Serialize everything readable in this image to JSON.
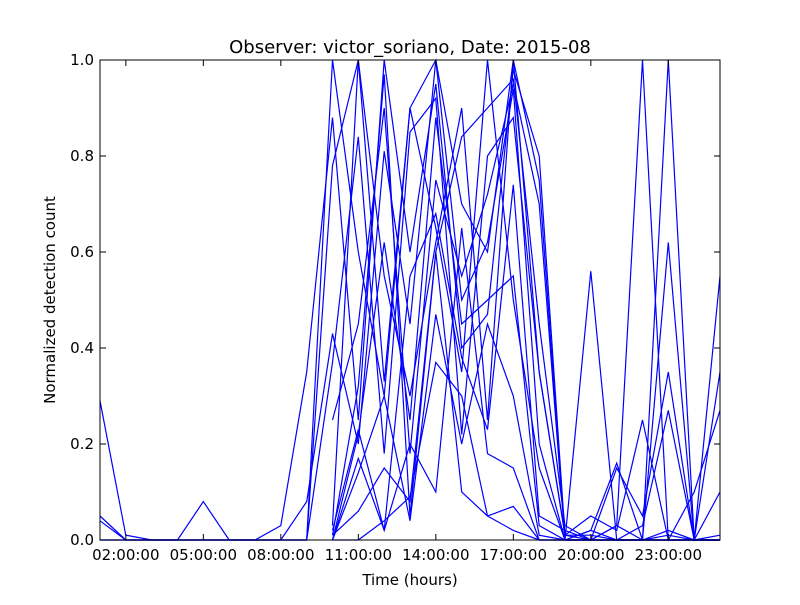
{
  "chart_data": {
    "type": "line",
    "title": "Observer: victor_soriano, Date: 2015-08",
    "xlabel": "Time (hours)",
    "ylabel": "Normalized detection count",
    "xlim": [
      1.0,
      25.0
    ],
    "ylim": [
      0.0,
      1.0
    ],
    "x_ticks": [
      {
        "value": 2,
        "label": "02:00:00"
      },
      {
        "value": 5,
        "label": "05:00:00"
      },
      {
        "value": 8,
        "label": "08:00:00"
      },
      {
        "value": 11,
        "label": "11:00:00"
      },
      {
        "value": 14,
        "label": "14:00:00"
      },
      {
        "value": 17,
        "label": "17:00:00"
      },
      {
        "value": 20,
        "label": "20:00:00"
      },
      {
        "value": 23,
        "label": "23:00:00"
      }
    ],
    "y_ticks": [
      {
        "value": 0.0,
        "label": "0.0"
      },
      {
        "value": 0.2,
        "label": "0.2"
      },
      {
        "value": 0.4,
        "label": "0.4"
      },
      {
        "value": 0.6,
        "label": "0.6"
      },
      {
        "value": 0.8,
        "label": "0.8"
      },
      {
        "value": 1.0,
        "label": "1.0"
      }
    ],
    "grid": false,
    "line_color": "#0000ff",
    "series": [
      {
        "x": [
          1,
          2,
          3,
          4,
          5,
          6,
          7,
          8,
          9,
          10,
          11,
          12,
          13,
          14,
          15,
          16,
          17,
          18,
          19,
          20,
          21,
          22,
          23,
          24,
          25
        ],
        "y": [
          0.29,
          0.01,
          0,
          0,
          0,
          0,
          0,
          0,
          0,
          1.0,
          0.6,
          0.3,
          0.9,
          1.0,
          0.7,
          0.6,
          1.0,
          0.35,
          0.01,
          0.0,
          0.03,
          0.0,
          0.0,
          0.0,
          0.0
        ]
      },
      {
        "x": [
          1,
          2,
          3,
          4,
          5,
          6,
          7,
          8,
          9,
          10,
          11,
          12,
          13,
          14,
          15,
          16,
          17,
          18,
          19,
          20,
          21,
          22,
          23,
          24,
          25
        ],
        "y": [
          0.05,
          0.0,
          0,
          0,
          0.08,
          0,
          0,
          0.03,
          0.35,
          0.88,
          0.25,
          1.0,
          0.6,
          0.95,
          0.4,
          0.47,
          0.98,
          0.8,
          0.01,
          0.01,
          0.0,
          0.0,
          0.02,
          0.0,
          0.0
        ]
      },
      {
        "x": [
          1,
          2,
          3,
          4,
          5,
          6,
          7,
          8,
          9,
          10,
          11,
          12,
          13,
          14,
          15,
          16,
          17,
          18,
          19,
          20,
          21,
          22,
          23,
          24,
          25
        ],
        "y": [
          0.04,
          0.0,
          0,
          0,
          0,
          0,
          0,
          0,
          0.0,
          0.78,
          1.0,
          0.55,
          0.3,
          0.62,
          0.9,
          0.25,
          1.0,
          0.75,
          0.0,
          0.56,
          0.0,
          0.0,
          1.0,
          0.0,
          0.55
        ]
      },
      {
        "x": [
          1,
          2,
          3,
          4,
          5,
          6,
          7,
          8,
          9,
          10,
          11,
          12,
          13,
          14,
          15,
          16,
          17,
          18,
          19,
          20,
          21,
          22,
          23,
          24,
          25
        ],
        "y": [
          0.0,
          0.0,
          0,
          0,
          0,
          0,
          0,
          0,
          0.08,
          0.43,
          0.2,
          0.81,
          0.45,
          1.0,
          0.5,
          0.62,
          0.94,
          0.2,
          0.0,
          0.0,
          0.03,
          1.0,
          0.0,
          0.0,
          0.35
        ]
      },
      {
        "x": [
          1,
          2,
          3,
          4,
          5,
          6,
          7,
          8,
          9,
          10,
          11,
          12,
          13,
          14,
          15,
          16,
          17,
          18,
          19,
          20,
          21,
          22,
          23,
          24,
          25
        ],
        "y": [
          0.0,
          0,
          0,
          0,
          0,
          0,
          0,
          0,
          0.0,
          0.37,
          0.84,
          0.18,
          0.85,
          0.92,
          0.22,
          0.8,
          0.88,
          0.35,
          0.01,
          0.05,
          0.02,
          0.25,
          0.0,
          0.1,
          0.27
        ]
      },
      {
        "x": [
          10,
          11,
          12,
          13,
          14,
          15,
          16,
          17,
          18,
          19,
          20,
          21,
          22,
          23,
          24,
          25
        ],
        "y": [
          0.03,
          1.0,
          0.33,
          0.9,
          0.65,
          0.35,
          1.0,
          0.5,
          0.15,
          0.0,
          0.02,
          0.16,
          0.0,
          0.62,
          0.0,
          0.0
        ]
      },
      {
        "x": [
          10,
          11,
          12,
          13,
          14,
          15,
          16,
          17,
          18,
          19,
          20,
          21,
          22,
          23,
          24,
          25
        ],
        "y": [
          0.01,
          0.32,
          0.97,
          0.05,
          0.6,
          0.84,
          0.9,
          0.96,
          0.45,
          0.03,
          0.0,
          0.15,
          0.05,
          0.35,
          0.0,
          0.1
        ]
      },
      {
        "x": [
          10,
          11,
          12,
          13,
          14,
          15,
          16,
          17,
          18,
          19,
          20,
          21,
          22,
          23,
          24,
          25
        ],
        "y": [
          0.0,
          0.22,
          0.62,
          0.25,
          0.88,
          0.45,
          0.5,
          0.55,
          0.03,
          0.0,
          0.0,
          0.0,
          0.03,
          0.27,
          0.0,
          0.01
        ]
      },
      {
        "x": [
          10,
          11,
          12,
          13,
          14,
          15,
          16,
          17,
          18,
          19,
          20,
          21,
          22,
          23,
          24,
          25
        ],
        "y": [
          0.02,
          0.23,
          0.02,
          0.55,
          0.68,
          0.38,
          0.23,
          0.74,
          0.05,
          0.02,
          0.0,
          0.0,
          0.0,
          0.01,
          0.0,
          0.0
        ]
      },
      {
        "x": [
          10,
          11,
          12,
          13,
          14,
          15,
          16,
          17,
          18,
          19,
          20,
          21,
          22,
          23,
          24,
          25
        ],
        "y": [
          0.0,
          0.14,
          0.3,
          0.04,
          0.47,
          0.2,
          0.45,
          0.3,
          0.01,
          0.0,
          0.0,
          0.0,
          0.0,
          0.0,
          0.0,
          0.0
        ]
      },
      {
        "x": [
          10,
          11,
          12,
          13,
          14,
          15,
          16,
          17,
          18,
          19,
          20,
          21,
          22,
          23,
          24,
          25
        ],
        "y": [
          0.0,
          0.17,
          0.02,
          0.2,
          0.1,
          0.65,
          0.18,
          0.15,
          0.0,
          0.0,
          0.0,
          0.0,
          0.0,
          0.0,
          0.0,
          0.0
        ]
      },
      {
        "x": [
          10,
          11,
          12,
          13,
          14,
          15,
          16,
          17,
          18,
          19,
          20,
          21,
          22,
          23,
          24,
          25
        ],
        "y": [
          0.01,
          0.06,
          0.15,
          0.08,
          0.6,
          0.1,
          0.05,
          0.07,
          0.0,
          0.0,
          0.0,
          0.0,
          0.0,
          0.0,
          0.0,
          0.0
        ]
      },
      {
        "x": [
          10,
          11,
          12,
          13,
          14,
          15,
          16,
          17,
          18,
          19,
          20,
          21,
          22,
          23,
          24,
          25
        ],
        "y": [
          0.0,
          0.0,
          0.04,
          0.09,
          0.37,
          0.3,
          0.05,
          0.02,
          0.0,
          0.0,
          0.0,
          0.0,
          0.0,
          0.0,
          0.0,
          0.0
        ]
      },
      {
        "x": [
          10,
          11,
          12,
          13,
          14,
          15,
          16,
          17,
          18,
          19,
          20,
          21,
          22,
          23,
          24,
          25
        ],
        "y": [
          0.25,
          0.45,
          0.9,
          0.18,
          0.75,
          0.55,
          0.72,
          0.95,
          0.7,
          0.0,
          0.02,
          0.0,
          0.0,
          0.0,
          0.0,
          0.0
        ]
      }
    ]
  }
}
